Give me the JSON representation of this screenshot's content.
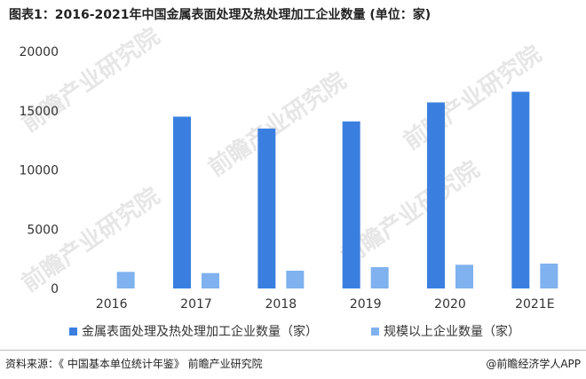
{
  "chart_data": {
    "type": "bar",
    "title": "图表1：2016-2021年中国金属表面处理及热处理加工企业数量 (单位：家)",
    "categories": [
      "2016",
      "2017",
      "2018",
      "2019",
      "2020",
      "2021E"
    ],
    "series": [
      {
        "name": "金属表面处理及热处理加工企业数量（家）",
        "color": "#3a7fe0",
        "values": [
          0,
          14500,
          13500,
          14100,
          15700,
          16600
        ]
      },
      {
        "name": "规模以上企业数量（家）",
        "color": "#7fb2ee",
        "values": [
          1400,
          1300,
          1500,
          1800,
          2000,
          2100
        ]
      }
    ],
    "yticks": [
      0,
      5000,
      10000,
      15000,
      20000
    ],
    "ylim": [
      0,
      20000
    ],
    "grid": false,
    "legend_position": "bottom"
  },
  "watermark": "前瞻产业研究院",
  "footer": {
    "source": "资料来源：《 中国基本单位统计年鉴》 前瞻产业研究院",
    "brand": "@前瞻经济学人APP"
  }
}
